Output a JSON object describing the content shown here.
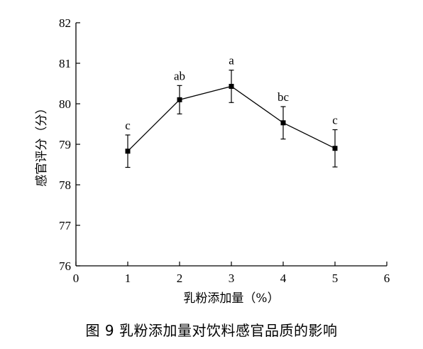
{
  "figure": {
    "caption": "图 9  乳粉添加量对饮料感官品质的影响"
  },
  "chart_data": {
    "type": "line",
    "title": "",
    "xlabel": "乳粉添加量（%）",
    "ylabel": "感官评分（分）",
    "xlim": [
      0,
      6
    ],
    "ylim": [
      76,
      82
    ],
    "x_ticks": [
      "0",
      "1",
      "2",
      "3",
      "4",
      "5",
      "6"
    ],
    "y_ticks": [
      "76",
      "77",
      "78",
      "79",
      "80",
      "81",
      "82"
    ],
    "grid": false,
    "legend": "none",
    "line_color": "#000000",
    "x": [
      1,
      2,
      3,
      4,
      5
    ],
    "series": [
      {
        "values": [
          78.83,
          80.1,
          80.43,
          79.53,
          78.9
        ],
        "error": [
          0.4,
          0.35,
          0.4,
          0.4,
          0.46
        ],
        "labels": [
          "c",
          "ab",
          "a",
          "bc",
          "c"
        ]
      }
    ]
  }
}
